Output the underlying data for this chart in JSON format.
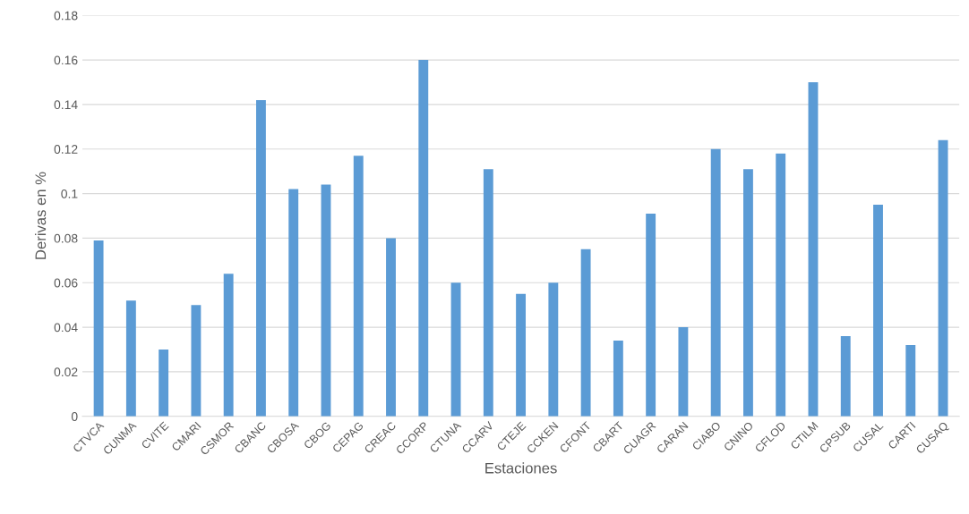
{
  "chart_data": {
    "type": "bar",
    "xlabel": "Estaciones",
    "ylabel": "Derivas en %",
    "categories": [
      "CTVCA",
      "CUNMA",
      "CVITE",
      "CMARI",
      "CSMOR",
      "CBANC",
      "CBOSA",
      "CBOG",
      "CEPAG",
      "CREAC",
      "CCORP",
      "CTUNA",
      "CCARV",
      "CTEJE",
      "CCKEN",
      "CFONT",
      "CBART",
      "CUAGR",
      "CARAN",
      "CIABO",
      "CNINO",
      "CFLOD",
      "CTILM",
      "CPSUB",
      "CUSAL",
      "CARTI",
      "CUSAQ"
    ],
    "values": [
      0.079,
      0.052,
      0.03,
      0.05,
      0.064,
      0.142,
      0.102,
      0.104,
      0.117,
      0.08,
      0.16,
      0.06,
      0.111,
      0.055,
      0.06,
      0.075,
      0.034,
      0.091,
      0.04,
      0.12,
      0.111,
      0.118,
      0.15,
      0.036,
      0.095,
      0.032,
      0.124
    ],
    "color": "#5b9bd5",
    "ylim": [
      0,
      0.18
    ],
    "yticks": [
      0,
      0.02,
      0.04,
      0.06,
      0.08,
      0.1,
      0.12,
      0.14,
      0.16,
      0.18
    ],
    "grid": "y",
    "legend": false
  }
}
